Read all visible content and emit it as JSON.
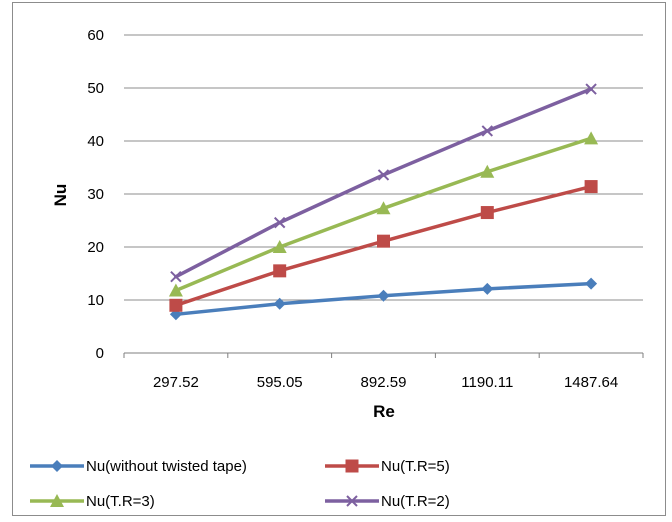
{
  "chart_data": {
    "type": "line",
    "title": "",
    "xlabel": "Re",
    "ylabel": "Nu",
    "categories": [
      "297.52",
      "595.05",
      "892.59",
      "1190.11",
      "1487.64"
    ],
    "ylim": [
      0,
      60
    ],
    "yticks": [
      0,
      10,
      20,
      30,
      40,
      50,
      60
    ],
    "grid": true,
    "legend_position": "bottom",
    "series": [
      {
        "name": "Nu(without twisted tape)",
        "values": [
          7.3,
          9.3,
          10.8,
          12.1,
          13.1
        ],
        "color": "#4a7ebb",
        "marker": "diamond"
      },
      {
        "name": "Nu(T.R=5)",
        "values": [
          9.0,
          15.5,
          21.1,
          26.5,
          31.4
        ],
        "color": "#be4b48",
        "marker": "square"
      },
      {
        "name": "Nu(T.R=3)",
        "values": [
          11.8,
          20.0,
          27.3,
          34.2,
          40.5
        ],
        "color": "#98b954",
        "marker": "triangle"
      },
      {
        "name": "Nu(T.R=2)",
        "values": [
          14.4,
          24.6,
          33.6,
          41.9,
          49.8
        ],
        "color": "#7d60a0",
        "marker": "x"
      }
    ]
  }
}
